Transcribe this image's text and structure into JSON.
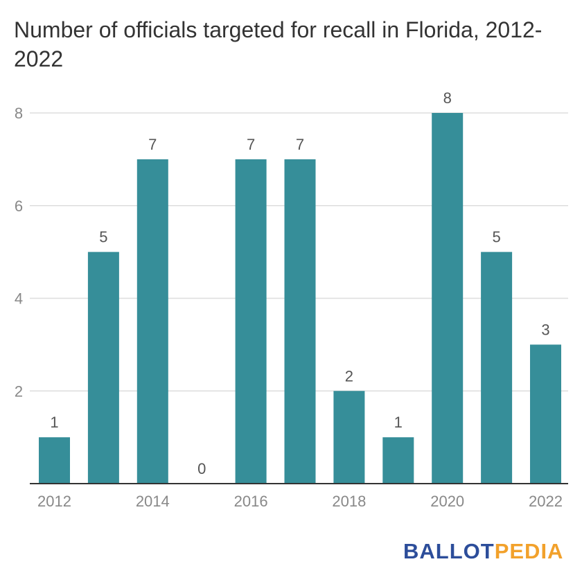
{
  "chart_data": {
    "type": "bar",
    "title": "Number of officials targeted for recall in Florida, 2012-2022",
    "categories": [
      "2012",
      "2013",
      "2014",
      "2015",
      "2016",
      "2017",
      "2018",
      "2019",
      "2020",
      "2021",
      "2022"
    ],
    "values": [
      1,
      5,
      7,
      0,
      7,
      7,
      2,
      1,
      8,
      5,
      3
    ],
    "x_tick_labels": [
      "2012",
      "2014",
      "2016",
      "2018",
      "2020",
      "2022"
    ],
    "y_ticks": [
      2,
      4,
      6,
      8
    ],
    "ylim": [
      0,
      8
    ],
    "xlabel": "",
    "ylabel": "",
    "grid": true,
    "data_labels": true,
    "bar_color": "#368e99",
    "grid_color": "#dddddd",
    "axis_color": "#333333",
    "tick_label_color": "#888888",
    "data_label_color": "#555555"
  },
  "logo": {
    "part1": "BALLOT",
    "part2": "PEDIA",
    "color1": "#2c4d9a",
    "color2": "#f2a12b"
  }
}
